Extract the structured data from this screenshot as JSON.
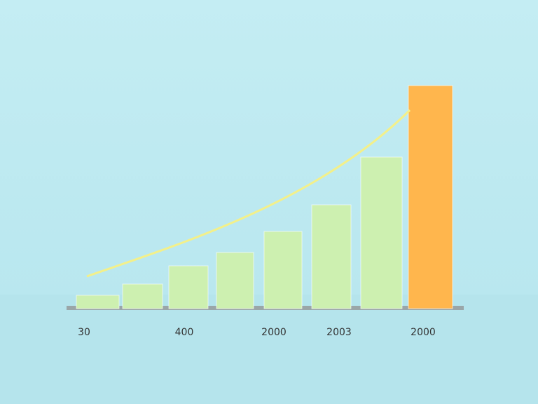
{
  "chart_data": {
    "type": "bar",
    "categories": [
      "30",
      null,
      "400",
      null,
      "2000",
      "2003",
      null,
      "2000"
    ],
    "values": [
      19,
      35,
      61,
      80,
      110,
      148,
      216,
      318
    ],
    "colors": [
      "#cdf0b0",
      "#cdf0b0",
      "#cdf0b0",
      "#cdf0b0",
      "#cdf0b0",
      "#cdf0b0",
      "#cdf0b0",
      "#ffb64d"
    ],
    "ylim": [
      0,
      320
    ]
  }
}
